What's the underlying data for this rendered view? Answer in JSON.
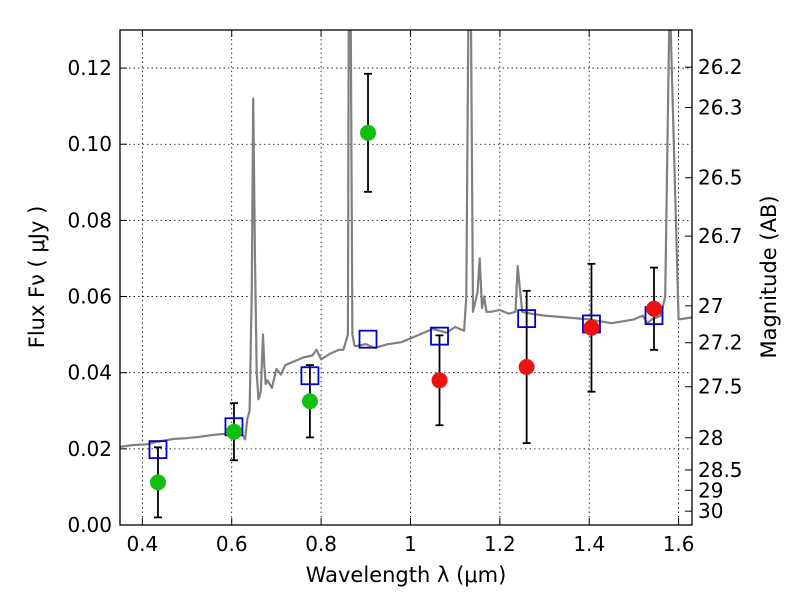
{
  "chart_data": {
    "type": "scatter",
    "title": "",
    "xlabel": "Wavelength  λ (μm)",
    "ylabel": "Flux  Fν  ( μJy )",
    "y2label": "Magnitude (AB)",
    "xlim": [
      0.35,
      1.63
    ],
    "ylim": [
      0.0,
      0.13
    ],
    "grid": true,
    "x_ticks": [
      0.4,
      0.6,
      0.8,
      1.0,
      1.2,
      1.4,
      1.6
    ],
    "x_tick_labels": [
      "0.4",
      "0.6",
      "0.8",
      "1",
      "1.2",
      "1.4",
      "1.6"
    ],
    "y_ticks": [
      0.0,
      0.02,
      0.04,
      0.06,
      0.08,
      0.1,
      0.12
    ],
    "y_tick_labels": [
      "0.00",
      "0.02",
      "0.04",
      "0.06",
      "0.08",
      "0.10",
      "0.12"
    ],
    "mag_ticks": [
      26.2,
      26.3,
      26.5,
      26.7,
      27,
      27.2,
      27.5,
      28,
      28.5,
      29,
      30
    ],
    "mag_tick_labels": [
      "26.2",
      "26.3",
      "26.5",
      "26.7",
      "27",
      "27.2",
      "27.5",
      "28",
      "28.5",
      "29",
      "30"
    ],
    "colors": {
      "spectrum": "#808080",
      "model_square": "#0000cc",
      "green_point": "#10c010",
      "red_point": "#ee1111",
      "errorbar": "#000000"
    },
    "series": [
      {
        "marker": "square-open",
        "color": "#0000cc",
        "x": [
          0.435,
          0.605,
          0.775,
          0.905,
          1.065,
          1.26,
          1.405,
          1.545
        ],
        "y": [
          0.0198,
          0.0258,
          0.0392,
          0.0488,
          0.0496,
          0.0542,
          0.0528,
          0.055
        ]
      },
      {
        "marker": "circle",
        "color": "#10c010",
        "x": [
          0.435,
          0.605,
          0.775,
          0.905
        ],
        "y": [
          0.0112,
          0.0245,
          0.0325,
          0.103
        ],
        "err_low": [
          0.0092,
          0.0075,
          0.0095,
          0.0155
        ],
        "err_high": [
          0.0092,
          0.0075,
          0.0095,
          0.0155
        ]
      },
      {
        "marker": "circle",
        "color": "#ee1111",
        "x": [
          1.065,
          1.26,
          1.405,
          1.545
        ],
        "y": [
          0.038,
          0.0415,
          0.0518,
          0.0568
        ],
        "err_low": [
          0.0118,
          0.02,
          0.0168,
          0.0108
        ],
        "err_high": [
          0.0118,
          0.02,
          0.0168,
          0.0108
        ]
      }
    ],
    "spectrum": {
      "color": "#808080",
      "x": [
        0.35,
        0.38,
        0.41,
        0.43,
        0.45,
        0.47,
        0.5,
        0.53,
        0.56,
        0.59,
        0.61,
        0.62,
        0.63,
        0.635,
        0.64,
        0.645,
        0.648,
        0.652,
        0.656,
        0.66,
        0.665,
        0.67,
        0.673,
        0.676,
        0.68,
        0.69,
        0.7,
        0.71,
        0.72,
        0.74,
        0.76,
        0.78,
        0.79,
        0.8,
        0.82,
        0.84,
        0.85,
        0.86,
        0.862,
        0.866,
        0.87,
        0.875,
        0.88,
        0.9,
        0.92,
        0.95,
        0.98,
        1.0,
        1.02,
        1.05,
        1.08,
        1.1,
        1.12,
        1.125,
        1.13,
        1.135,
        1.14,
        1.15,
        1.155,
        1.16,
        1.165,
        1.17,
        1.18,
        1.2,
        1.22,
        1.235,
        1.24,
        1.25,
        1.27,
        1.3,
        1.35,
        1.4,
        1.45,
        1.5,
        1.52,
        1.53,
        1.54,
        1.55,
        1.56,
        1.57,
        1.58,
        1.6,
        1.63
      ],
      "y": [
        0.0205,
        0.021,
        0.0212,
        0.0218,
        0.0222,
        0.0226,
        0.0228,
        0.0232,
        0.0237,
        0.024,
        0.0242,
        0.0245,
        0.0225,
        0.028,
        0.03,
        0.062,
        0.112,
        0.07,
        0.04,
        0.033,
        0.035,
        0.05,
        0.042,
        0.037,
        0.038,
        0.036,
        0.041,
        0.0395,
        0.042,
        0.043,
        0.044,
        0.0445,
        0.046,
        0.0435,
        0.045,
        0.046,
        0.046,
        0.05,
        0.14,
        0.14,
        0.05,
        0.047,
        0.047,
        0.0475,
        0.0465,
        0.0475,
        0.048,
        0.049,
        0.05,
        0.0515,
        0.0505,
        0.052,
        0.051,
        0.06,
        0.14,
        0.14,
        0.056,
        0.061,
        0.07,
        0.057,
        0.06,
        0.056,
        0.056,
        0.0565,
        0.0555,
        0.056,
        0.068,
        0.056,
        0.0555,
        0.055,
        0.0545,
        0.054,
        0.053,
        0.054,
        0.055,
        0.053,
        0.054,
        0.0545,
        0.055,
        0.06,
        0.14,
        0.054,
        0.0545
      ]
    }
  }
}
